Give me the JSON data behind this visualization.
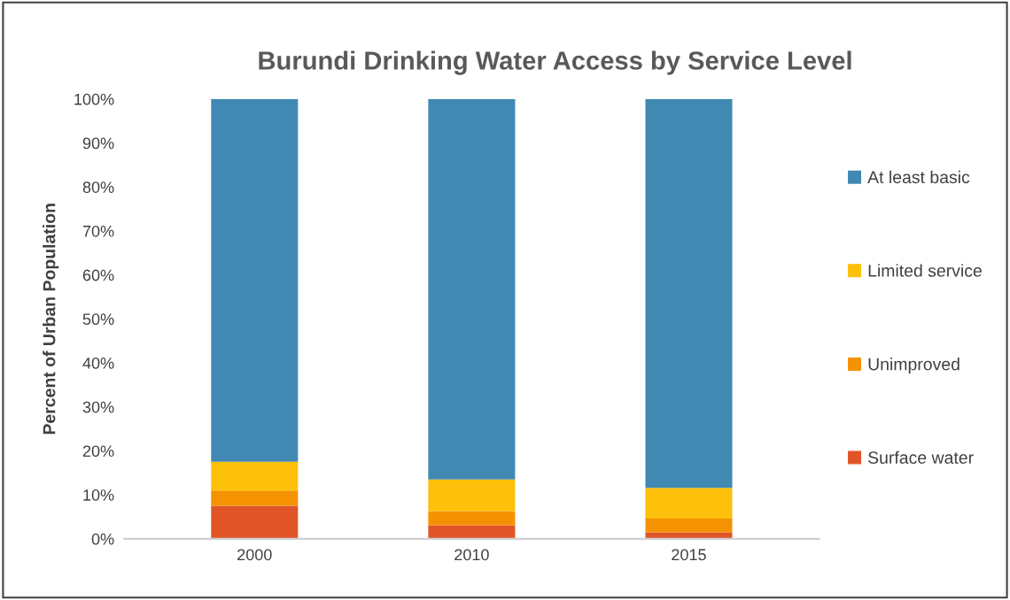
{
  "chart_data": {
    "type": "bar",
    "title": "Burundi Drinking Water Access by Service Level",
    "ylabel": "Percent of Urban Population",
    "categories": [
      "2000",
      "2010",
      "2015"
    ],
    "stacked": true,
    "series": [
      {
        "name": "Surface water",
        "color": "#e05527",
        "values": [
          7.5,
          3.1,
          1.5
        ]
      },
      {
        "name": "Unimproved",
        "color": "#f59202",
        "values": [
          3.5,
          3.2,
          3.1
        ]
      },
      {
        "name": "Limited service",
        "color": "#fdc10b",
        "values": [
          6.5,
          7.2,
          7.0
        ]
      },
      {
        "name": "At least basic",
        "color": "#4189b3",
        "values": [
          82.5,
          86.5,
          88.4
        ]
      }
    ],
    "ylim": [
      0,
      100
    ],
    "yticks": [
      {
        "value": 0,
        "label": "0%"
      },
      {
        "value": 10,
        "label": "10%"
      },
      {
        "value": 20,
        "label": "20%"
      },
      {
        "value": 30,
        "label": "30%"
      },
      {
        "value": 40,
        "label": "40%"
      },
      {
        "value": 50,
        "label": "50%"
      },
      {
        "value": 60,
        "label": "60%"
      },
      {
        "value": 70,
        "label": "70%"
      },
      {
        "value": 80,
        "label": "80%"
      },
      {
        "value": 90,
        "label": "90%"
      },
      {
        "value": 100,
        "label": "100%"
      }
    ],
    "grid": false,
    "legend": "right"
  }
}
